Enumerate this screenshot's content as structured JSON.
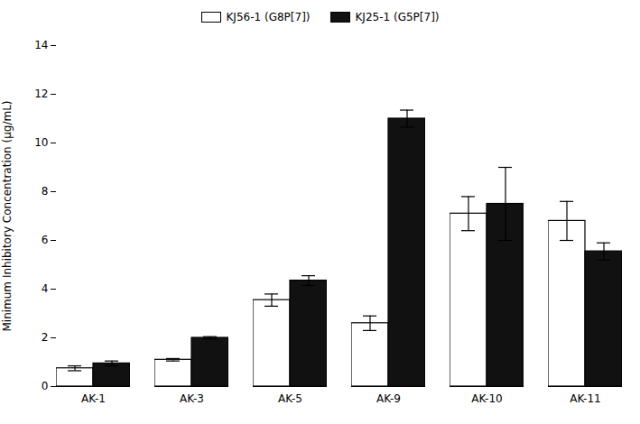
{
  "chart_data": {
    "type": "bar",
    "ylabel": "Minimum Inhibitory Concentration (μg/mL)",
    "categories": [
      "AK-1",
      "AK-3",
      "AK-5",
      "AK-9",
      "AK-10",
      "AK-11"
    ],
    "series": [
      {
        "name": "KJ56-1 (G8P[7])",
        "color": "#ffffff",
        "values": [
          0.75,
          1.1,
          3.55,
          2.6,
          7.1,
          6.8
        ],
        "errors": [
          0.1,
          0.05,
          0.25,
          0.3,
          0.7,
          0.8
        ]
      },
      {
        "name": "KJ25-1 (G5P[7])",
        "color": "#111111",
        "values": [
          0.95,
          2.0,
          4.35,
          11.0,
          7.5,
          5.55
        ],
        "errors": [
          0.1,
          0.05,
          0.2,
          0.35,
          1.5,
          0.35
        ]
      }
    ],
    "ylim": [
      0,
      14
    ],
    "yticks": [
      0,
      2,
      4,
      6,
      8,
      10,
      12,
      14
    ],
    "grid": false,
    "legend": "upper center"
  }
}
